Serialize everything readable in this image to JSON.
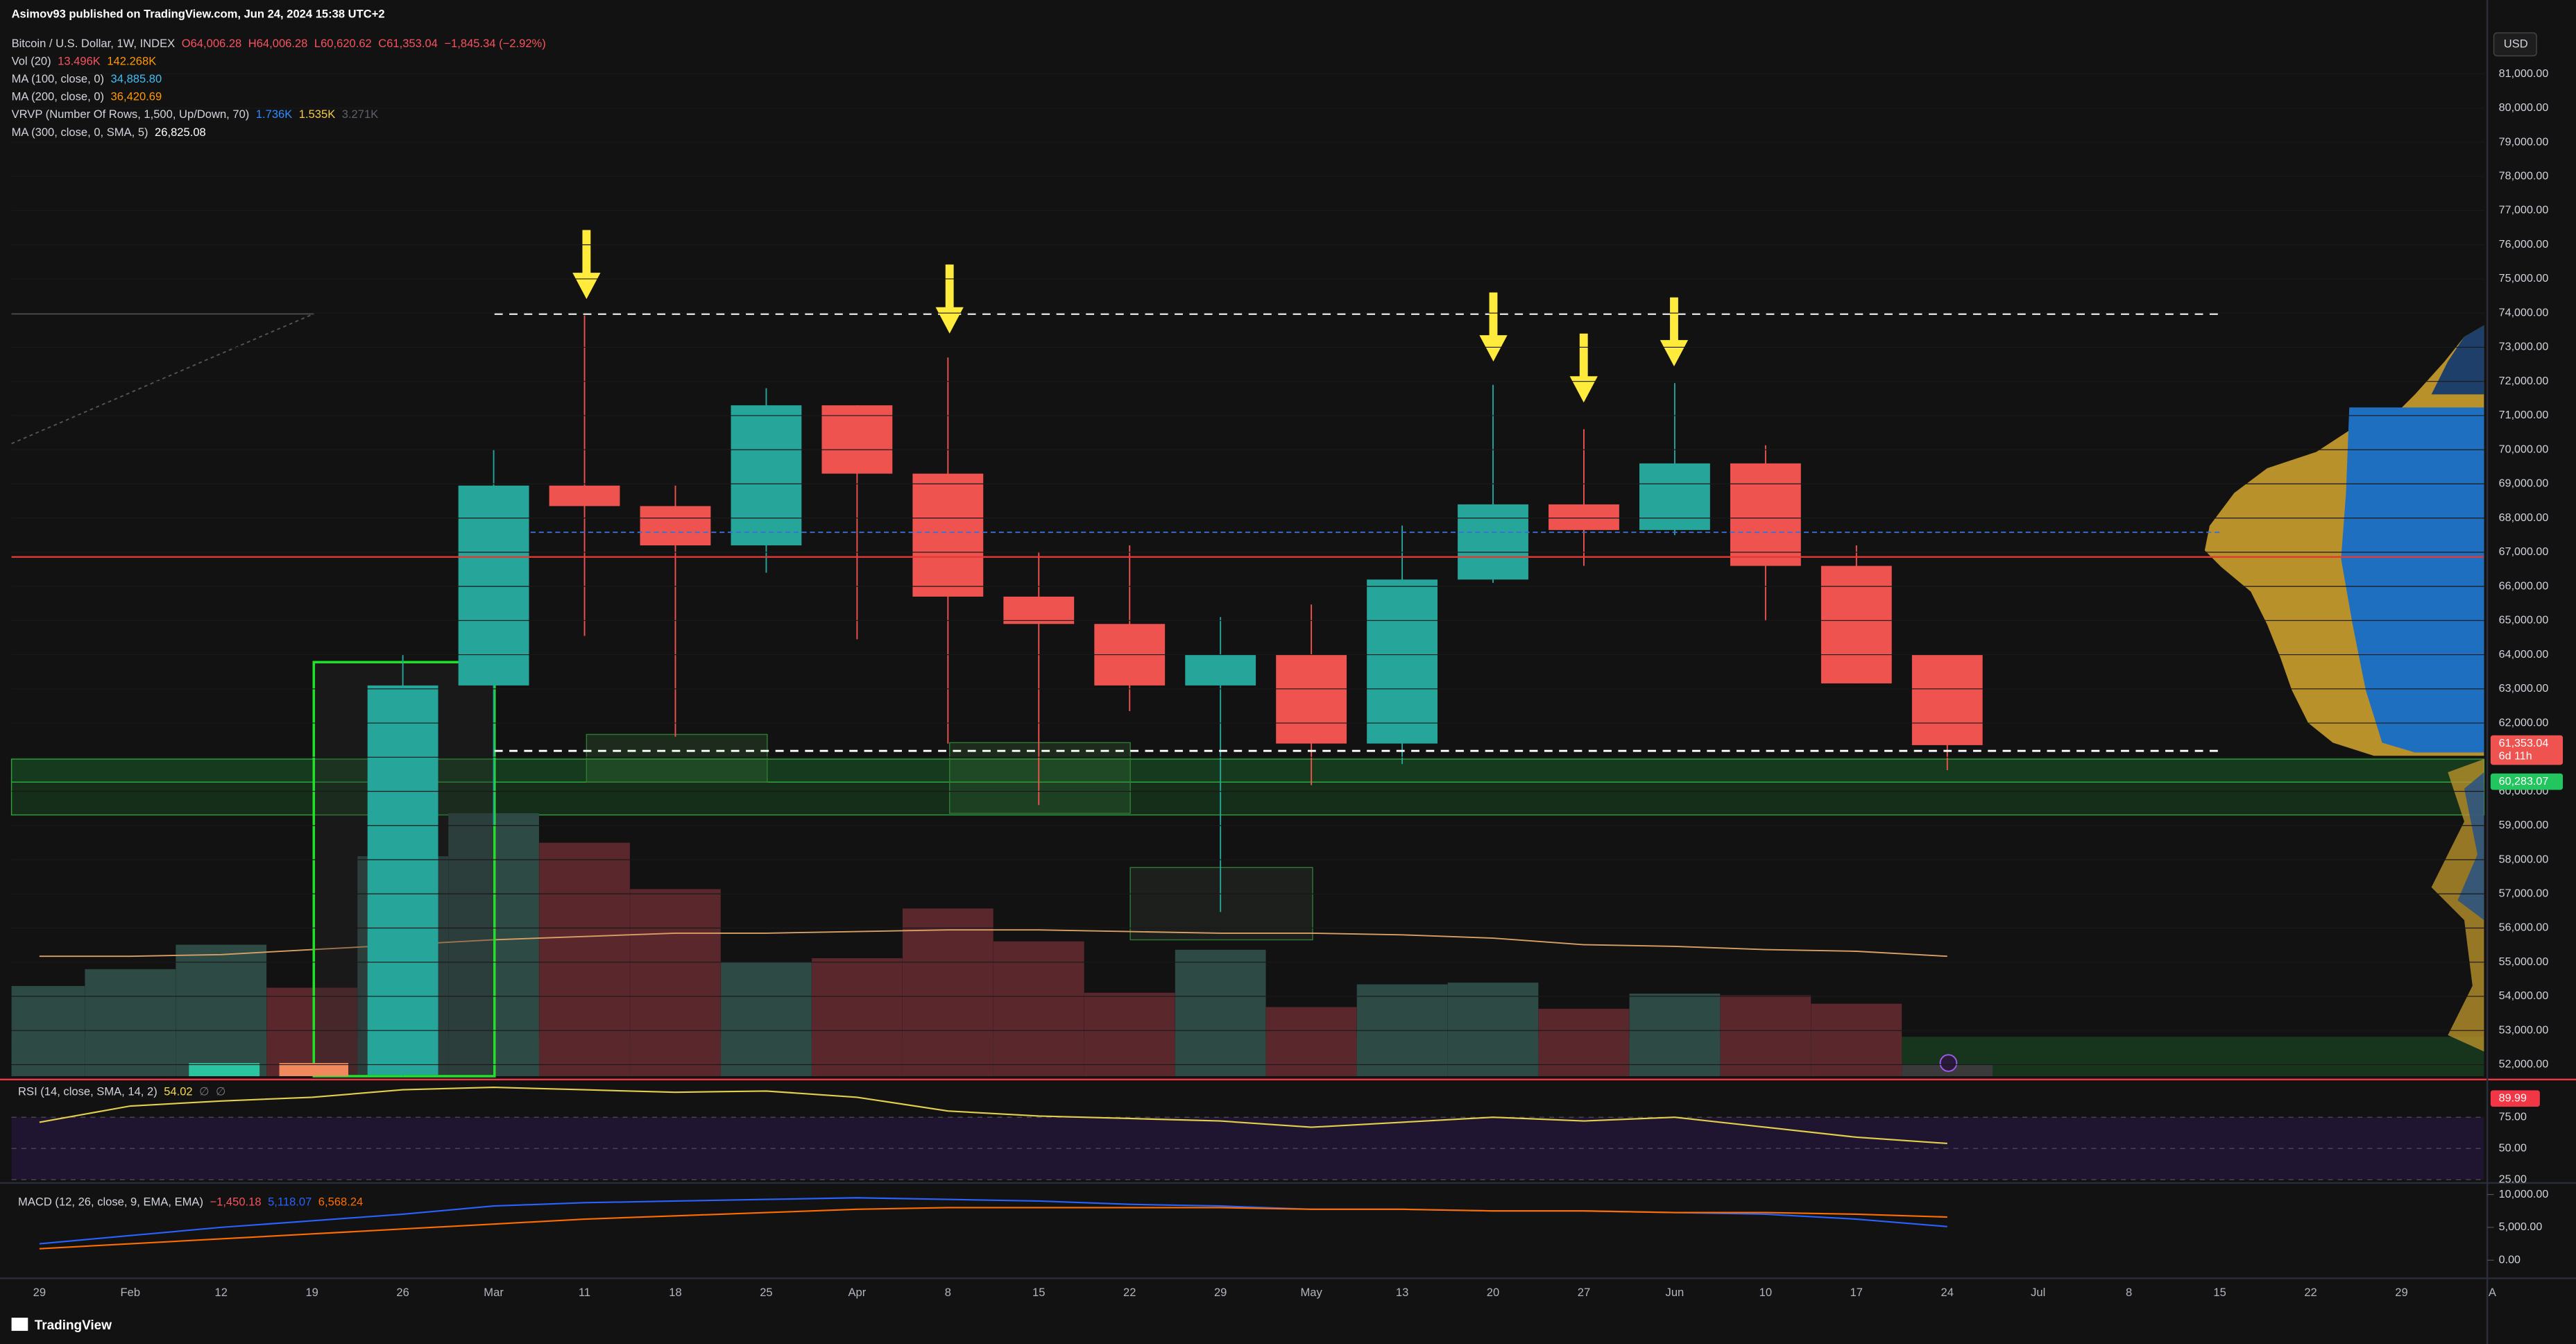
{
  "header": {
    "publisher": "Asimov93 published on TradingView.com, Jun 24, 2024 15:38 UTC+2",
    "legend": [
      {
        "text": "Bitcoin / U.S. Dollar, 1W, INDEX",
        "values": [
          {
            "text": "O64,006.28",
            "color": "#f7525f"
          },
          {
            "text": "H64,006.28",
            "color": "#f7525f"
          },
          {
            "text": "L60,620.62",
            "color": "#f7525f"
          },
          {
            "text": "C61,353.04",
            "color": "#f7525f"
          },
          {
            "text": "−1,845.34 (−2.92%)",
            "color": "#f7525f"
          }
        ]
      },
      {
        "text": "Vol (20)",
        "values": [
          {
            "text": "13.496K",
            "color": "#f7525f"
          },
          {
            "text": "142.268K",
            "color": "#ff9800"
          }
        ]
      },
      {
        "text": "MA (100, close, 0)",
        "values": [
          {
            "text": "34,885.80",
            "color": "#42bdf5"
          }
        ]
      },
      {
        "text": "MA (200, close, 0)",
        "values": [
          {
            "text": "36,420.69",
            "color": "#ff9800"
          }
        ]
      },
      {
        "text": "VRVP (Number Of Rows, 1,500, Up/Down, 70)",
        "values": [
          {
            "text": "1.736K",
            "color": "#2f8bff"
          },
          {
            "text": "1.535K",
            "color": "#f2c94c"
          },
          {
            "text": "3.271K",
            "color": "#5d606b"
          }
        ]
      },
      {
        "text": "MA (300, close, 0, SMA, 5)",
        "values": [
          {
            "text": "26,825.08",
            "color": "#ffffff"
          }
        ]
      }
    ],
    "brand": "TradingView"
  },
  "chart_data": [
    {
      "type": "candlestick",
      "currency": "USD",
      "categories": [
        "29",
        "Feb",
        "12",
        "19",
        "26",
        "Mar",
        "11",
        "18",
        "25",
        "Apr",
        "8",
        "15",
        "22",
        "29",
        "May",
        "13",
        "20",
        "27",
        "Jun",
        "10",
        "17",
        "24",
        "Jul",
        "8",
        "15",
        "22",
        "29",
        "A"
      ],
      "open": [
        null,
        null,
        null,
        null,
        51700,
        63100,
        68950,
        68350,
        67200,
        71300,
        69300,
        65700,
        64900,
        63100,
        64000,
        61400,
        66200,
        68400,
        67650,
        69600,
        66600,
        64006.28,
        null,
        null,
        null,
        null,
        null,
        null
      ],
      "high": [
        null,
        null,
        null,
        null,
        64000,
        70000,
        73930,
        68950,
        71800,
        71300,
        72700,
        67000,
        67200,
        65100,
        65470,
        67780,
        71900,
        70600,
        71950,
        70130,
        67200,
        64006.28,
        null,
        null,
        null,
        null,
        null,
        null
      ],
      "low": [
        null,
        null,
        null,
        null,
        50900,
        59000,
        64550,
        61600,
        66400,
        64450,
        61400,
        59600,
        62350,
        56470,
        60180,
        60800,
        66100,
        66600,
        67500,
        64990,
        63160,
        60620.62,
        null,
        null,
        null,
        null,
        null,
        null
      ],
      "close": [
        null,
        null,
        null,
        null,
        63100,
        68950,
        68350,
        67200,
        71300,
        69300,
        65700,
        64900,
        63100,
        64000,
        61400,
        66200,
        68400,
        67650,
        69600,
        66600,
        63160,
        61353.04,
        null,
        null,
        null,
        null,
        null,
        null
      ],
      "up_color": "#26a69a",
      "down_color": "#ef5350",
      "volume": [
        107,
        127,
        156,
        105,
        261,
        312,
        277,
        222,
        135,
        140,
        199,
        160,
        99,
        150,
        82,
        109,
        111,
        80,
        98,
        96,
        86,
        13.496,
        null,
        null,
        null,
        null,
        null,
        null
      ],
      "volume_colors": [
        "#2e4a45",
        "#2e4a45",
        "#2e4a45",
        "#5a272d",
        "#2e4a45",
        "#2e4a45",
        "#5a272d",
        "#5a272d",
        "#2e4a45",
        "#5a272d",
        "#5a272d",
        "#5a272d",
        "#5a272d",
        "#2e4a45",
        "#5a272d",
        "#2e4a45",
        "#2e4a45",
        "#5a272d",
        "#2e4a45",
        "#5a272d",
        "#5a272d",
        "#3a3a3a",
        null,
        null,
        null,
        null,
        null,
        null
      ],
      "volume_ma": [
        142.3,
        142.3,
        144.3,
        150.2,
        156,
        161.9,
        165.8,
        169.7,
        169.7,
        171.6,
        173.6,
        173.6,
        171.6,
        169.7,
        169.7,
        167.7,
        163.8,
        156,
        154,
        150.2,
        148.2,
        142.268,
        null,
        null,
        null,
        null,
        null,
        null
      ],
      "volume_ma_color": "#d9a066",
      "y2lim": [
        0,
        1238
      ],
      "ylim": [
        51663,
        82202
      ],
      "yticks": [
        {
          "value": 52000,
          "label": "52,000.00"
        },
        {
          "value": 53000,
          "label": "53,000.00"
        },
        {
          "value": 54000,
          "label": "54,000.00"
        },
        {
          "value": 55000,
          "label": "55,000.00"
        },
        {
          "value": 56000,
          "label": "56,000.00"
        },
        {
          "value": 57000,
          "label": "57,000.00"
        },
        {
          "value": 58000,
          "label": "58,000.00"
        },
        {
          "value": 59000,
          "label": "59,000.00"
        },
        {
          "value": 60000,
          "label": "60,000.00"
        },
        {
          "value": 61000,
          "label": "61,000.00"
        },
        {
          "value": 62000,
          "label": "62,000.00"
        },
        {
          "value": 63000,
          "label": "63,000.00"
        },
        {
          "value": 64000,
          "label": "64,000.00"
        },
        {
          "value": 65000,
          "label": "65,000.00"
        },
        {
          "value": 66000,
          "label": "66,000.00"
        },
        {
          "value": 67000,
          "label": "67,000.00"
        },
        {
          "value": 68000,
          "label": "68,000.00"
        },
        {
          "value": 69000,
          "label": "69,000.00"
        },
        {
          "value": 70000,
          "label": "70,000.00"
        },
        {
          "value": 71000,
          "label": "71,000.00"
        },
        {
          "value": 72000,
          "label": "72,000.00"
        },
        {
          "value": 73000,
          "label": "73,000.00"
        },
        {
          "value": 74000,
          "label": "74,000.00"
        },
        {
          "value": 75000,
          "label": "75,000.00"
        },
        {
          "value": 76000,
          "label": "76,000.00"
        },
        {
          "value": 77000,
          "label": "77,000.00"
        },
        {
          "value": 78000,
          "label": "78,000.00"
        },
        {
          "value": 79000,
          "label": "79,000.00"
        },
        {
          "value": 80000,
          "label": "80,000.00"
        },
        {
          "value": 81000,
          "label": "81,000.00"
        }
      ],
      "last_price_label": "61,353.04",
      "countdown": "6d 11h",
      "levels": [
        {
          "value": 60283.07,
          "label": "60,283.07",
          "color": "#22c55e"
        }
      ]
    },
    {
      "type": "line",
      "title": "RSI (14, close, SMA, 14, 2)",
      "legend_values": [
        {
          "text": "54.02",
          "color": "#f2d94c"
        },
        {
          "text": "∅",
          "color": "#787b86"
        },
        {
          "text": "∅",
          "color": "#787b86"
        }
      ],
      "series": [
        {
          "values": [
            71,
            84,
            88,
            91,
            97,
            99,
            97,
            95,
            96,
            91,
            80,
            76,
            74,
            72,
            67,
            71,
            75,
            72,
            75,
            67,
            59,
            54.02,
            null,
            null,
            null,
            null,
            null,
            null
          ],
          "color": "#e3cf4b"
        }
      ],
      "ylim": [
        25,
        101.3
      ],
      "yticks": [
        {
          "value": 75,
          "label": "75.00"
        },
        {
          "value": 50,
          "label": "50.00"
        },
        {
          "value": 25,
          "label": "25.00"
        }
      ],
      "band_color": "#1f1530",
      "levels": [
        {
          "value": 89.99,
          "label": "89.99",
          "color": "#f23645"
        }
      ]
    },
    {
      "type": "line",
      "title": "MACD (12, 26, close, 9, EMA, EMA)",
      "legend_values": [
        {
          "text": "−1,450.18",
          "color": "#f7525f"
        },
        {
          "text": "5,118.07",
          "color": "#2962ff"
        },
        {
          "text": "6,568.24",
          "color": "#ff6d00"
        }
      ],
      "series": [
        {
          "values": [
            2500,
            3750,
            5000,
            6000,
            7000,
            8250,
            8750,
            9000,
            9250,
            9500,
            9250,
            9000,
            8500,
            8250,
            7750,
            7750,
            7500,
            7500,
            7250,
            7000,
            6250,
            5118.07,
            null,
            null,
            null,
            null,
            null,
            null
          ],
          "color": "#2962ff"
        },
        {
          "values": [
            1750,
            2500,
            3250,
            4000,
            4750,
            5500,
            6250,
            6750,
            7250,
            7750,
            8000,
            8000,
            8000,
            8000,
            7750,
            7750,
            7500,
            7500,
            7250,
            7250,
            7000,
            6568.24,
            null,
            null,
            null,
            null,
            null,
            null
          ],
          "color": "#ff6d00"
        }
      ],
      "ylim": [
        -2250,
        11250
      ],
      "yticks": [
        {
          "value": 10000,
          "label": "10,000.00"
        },
        {
          "value": 5000,
          "label": "5,000.00"
        },
        {
          "value": 0,
          "label": "0.00"
        }
      ]
    }
  ]
}
